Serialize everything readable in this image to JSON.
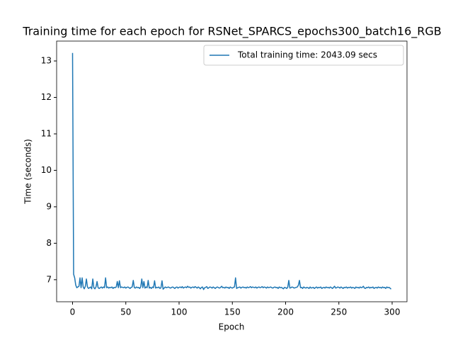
{
  "chart_data": {
    "type": "line",
    "title": "Training time for each epoch for RSNet_SPARCS_epochs300_batch16_RGB",
    "x_label": "Epoch",
    "y_label": "Time (seconds)",
    "x": [
      0,
      1,
      2,
      3,
      4,
      5,
      6,
      7,
      8,
      9,
      10,
      11,
      12,
      13,
      14,
      15,
      16,
      17,
      18,
      19,
      20,
      21,
      22,
      23,
      24,
      25,
      26,
      27,
      28,
      29,
      30,
      31,
      32,
      33,
      34,
      35,
      36,
      37,
      38,
      39,
      40,
      41,
      42,
      43,
      44,
      45,
      46,
      47,
      48,
      49,
      50,
      51,
      52,
      53,
      54,
      55,
      56,
      57,
      58,
      59,
      60,
      61,
      62,
      63,
      64,
      65,
      66,
      67,
      68,
      69,
      70,
      71,
      72,
      73,
      74,
      75,
      76,
      77,
      78,
      79,
      80,
      81,
      82,
      83,
      84,
      85,
      86,
      87,
      88,
      89,
      90,
      91,
      92,
      93,
      94,
      95,
      96,
      97,
      98,
      99,
      100,
      101,
      102,
      103,
      104,
      105,
      106,
      107,
      108,
      109,
      110,
      111,
      112,
      113,
      114,
      115,
      116,
      117,
      118,
      119,
      120,
      121,
      122,
      123,
      124,
      125,
      126,
      127,
      128,
      129,
      130,
      131,
      132,
      133,
      134,
      135,
      136,
      137,
      138,
      139,
      140,
      141,
      142,
      143,
      144,
      145,
      146,
      147,
      148,
      149,
      150,
      151,
      152,
      153,
      154,
      155,
      156,
      157,
      158,
      159,
      160,
      161,
      162,
      163,
      164,
      165,
      166,
      167,
      168,
      169,
      170,
      171,
      172,
      173,
      174,
      175,
      176,
      177,
      178,
      179,
      180,
      181,
      182,
      183,
      184,
      185,
      186,
      187,
      188,
      189,
      190,
      191,
      192,
      193,
      194,
      195,
      196,
      197,
      198,
      199,
      200,
      201,
      202,
      203,
      204,
      205,
      206,
      207,
      208,
      209,
      210,
      211,
      212,
      213,
      214,
      215,
      216,
      217,
      218,
      219,
      220,
      221,
      222,
      223,
      224,
      225,
      226,
      227,
      228,
      229,
      230,
      231,
      232,
      233,
      234,
      235,
      236,
      237,
      238,
      239,
      240,
      241,
      242,
      243,
      244,
      245,
      246,
      247,
      248,
      249,
      250,
      251,
      252,
      253,
      254,
      255,
      256,
      257,
      258,
      259,
      260,
      261,
      262,
      263,
      264,
      265,
      266,
      267,
      268,
      269,
      270,
      271,
      272,
      273,
      274,
      275,
      276,
      277,
      278,
      279,
      280,
      281,
      282,
      283,
      284,
      285,
      286,
      287,
      288,
      289,
      290,
      291,
      292,
      293,
      294,
      295,
      296,
      297,
      298,
      299
    ],
    "series": [
      {
        "name": "Total training time: 2043.09 secs",
        "color": "#1f77b4",
        "values": [
          13.22,
          7.15,
          7.05,
          6.85,
          6.78,
          6.8,
          6.82,
          7.05,
          6.78,
          7.05,
          6.8,
          6.75,
          6.82,
          7.02,
          6.8,
          6.76,
          6.78,
          6.8,
          6.75,
          7.02,
          6.78,
          6.75,
          6.8,
          6.95,
          6.78,
          6.76,
          6.78,
          6.8,
          6.77,
          6.8,
          6.78,
          7.05,
          6.78,
          6.8,
          6.77,
          6.79,
          6.78,
          6.8,
          6.76,
          6.79,
          6.78,
          6.8,
          6.95,
          6.78,
          6.97,
          6.78,
          6.8,
          6.79,
          6.78,
          6.8,
          6.77,
          6.79,
          6.8,
          6.78,
          6.76,
          6.79,
          6.8,
          6.98,
          6.78,
          6.77,
          6.8,
          6.78,
          6.79,
          6.76,
          6.8,
          7.02,
          6.78,
          6.95,
          6.77,
          6.8,
          6.78,
          6.98,
          6.77,
          6.79,
          6.76,
          6.8,
          6.78,
          6.97,
          6.77,
          6.79,
          6.78,
          6.8,
          6.76,
          6.78,
          6.97,
          6.74,
          6.77,
          6.8,
          6.78,
          6.79,
          6.8,
          6.78,
          6.77,
          6.79,
          6.8,
          6.78,
          6.76,
          6.79,
          6.8,
          6.77,
          6.79,
          6.8,
          6.78,
          6.81,
          6.77,
          6.79,
          6.8,
          6.78,
          6.82,
          6.79,
          6.8,
          6.77,
          6.79,
          6.8,
          6.78,
          6.81,
          6.79,
          6.77,
          6.8,
          6.78,
          6.75,
          6.79,
          6.8,
          6.73,
          6.78,
          6.79,
          6.81,
          6.76,
          6.78,
          6.8,
          6.79,
          6.77,
          6.8,
          6.78,
          6.76,
          6.79,
          6.8,
          6.78,
          6.77,
          6.79,
          6.82,
          6.78,
          6.79,
          6.77,
          6.8,
          6.78,
          6.79,
          6.76,
          6.8,
          6.78,
          6.77,
          6.79,
          6.8,
          7.05,
          6.76,
          6.78,
          6.79,
          6.8,
          6.77,
          6.79,
          6.8,
          6.78,
          6.79,
          6.77,
          6.8,
          6.78,
          6.79,
          6.81,
          6.78,
          6.8,
          6.79,
          6.78,
          6.8,
          6.77,
          6.79,
          6.8,
          6.78,
          6.79,
          6.81,
          6.78,
          6.8,
          6.79,
          6.77,
          6.8,
          6.78,
          6.79,
          6.8,
          6.78,
          6.77,
          6.79,
          6.8,
          6.78,
          6.79,
          6.76,
          6.8,
          6.78,
          6.79,
          6.77,
          6.75,
          6.79,
          6.78,
          6.76,
          6.79,
          6.98,
          6.77,
          6.78,
          6.8,
          6.79,
          6.77,
          6.78,
          6.79,
          6.8,
          6.85,
          6.98,
          6.78,
          6.79,
          6.76,
          6.8,
          6.78,
          6.77,
          6.79,
          6.78,
          6.76,
          6.8,
          6.77,
          6.78,
          6.79,
          6.76,
          6.78,
          6.8,
          6.77,
          6.79,
          6.78,
          6.8,
          6.76,
          6.78,
          6.79,
          6.77,
          6.8,
          6.78,
          6.79,
          6.77,
          6.8,
          6.78,
          6.76,
          6.79,
          6.82,
          6.77,
          6.78,
          6.8,
          6.79,
          6.77,
          6.8,
          6.78,
          6.76,
          6.79,
          6.78,
          6.8,
          6.77,
          6.79,
          6.78,
          6.8,
          6.77,
          6.79,
          6.78,
          6.76,
          6.8,
          6.78,
          6.79,
          6.77,
          6.8,
          6.78,
          6.79,
          6.82,
          6.77,
          6.76,
          6.79,
          6.78,
          6.8,
          6.77,
          6.79,
          6.78,
          6.8,
          6.76,
          6.78,
          6.79,
          6.77,
          6.8,
          6.78,
          6.79,
          6.77,
          6.8,
          6.78,
          6.79,
          6.76,
          6.8,
          6.78,
          6.79,
          6.77,
          6.74
        ]
      }
    ],
    "xlim": [
      -14.95,
      313.95
    ],
    "xticks": [
      0,
      50,
      100,
      150,
      200,
      250,
      300
    ],
    "ylim": [
      6.395,
      13.545
    ],
    "yticks": [
      7,
      8,
      9,
      10,
      11,
      12,
      13
    ],
    "grid": false,
    "legend": "upper right"
  }
}
